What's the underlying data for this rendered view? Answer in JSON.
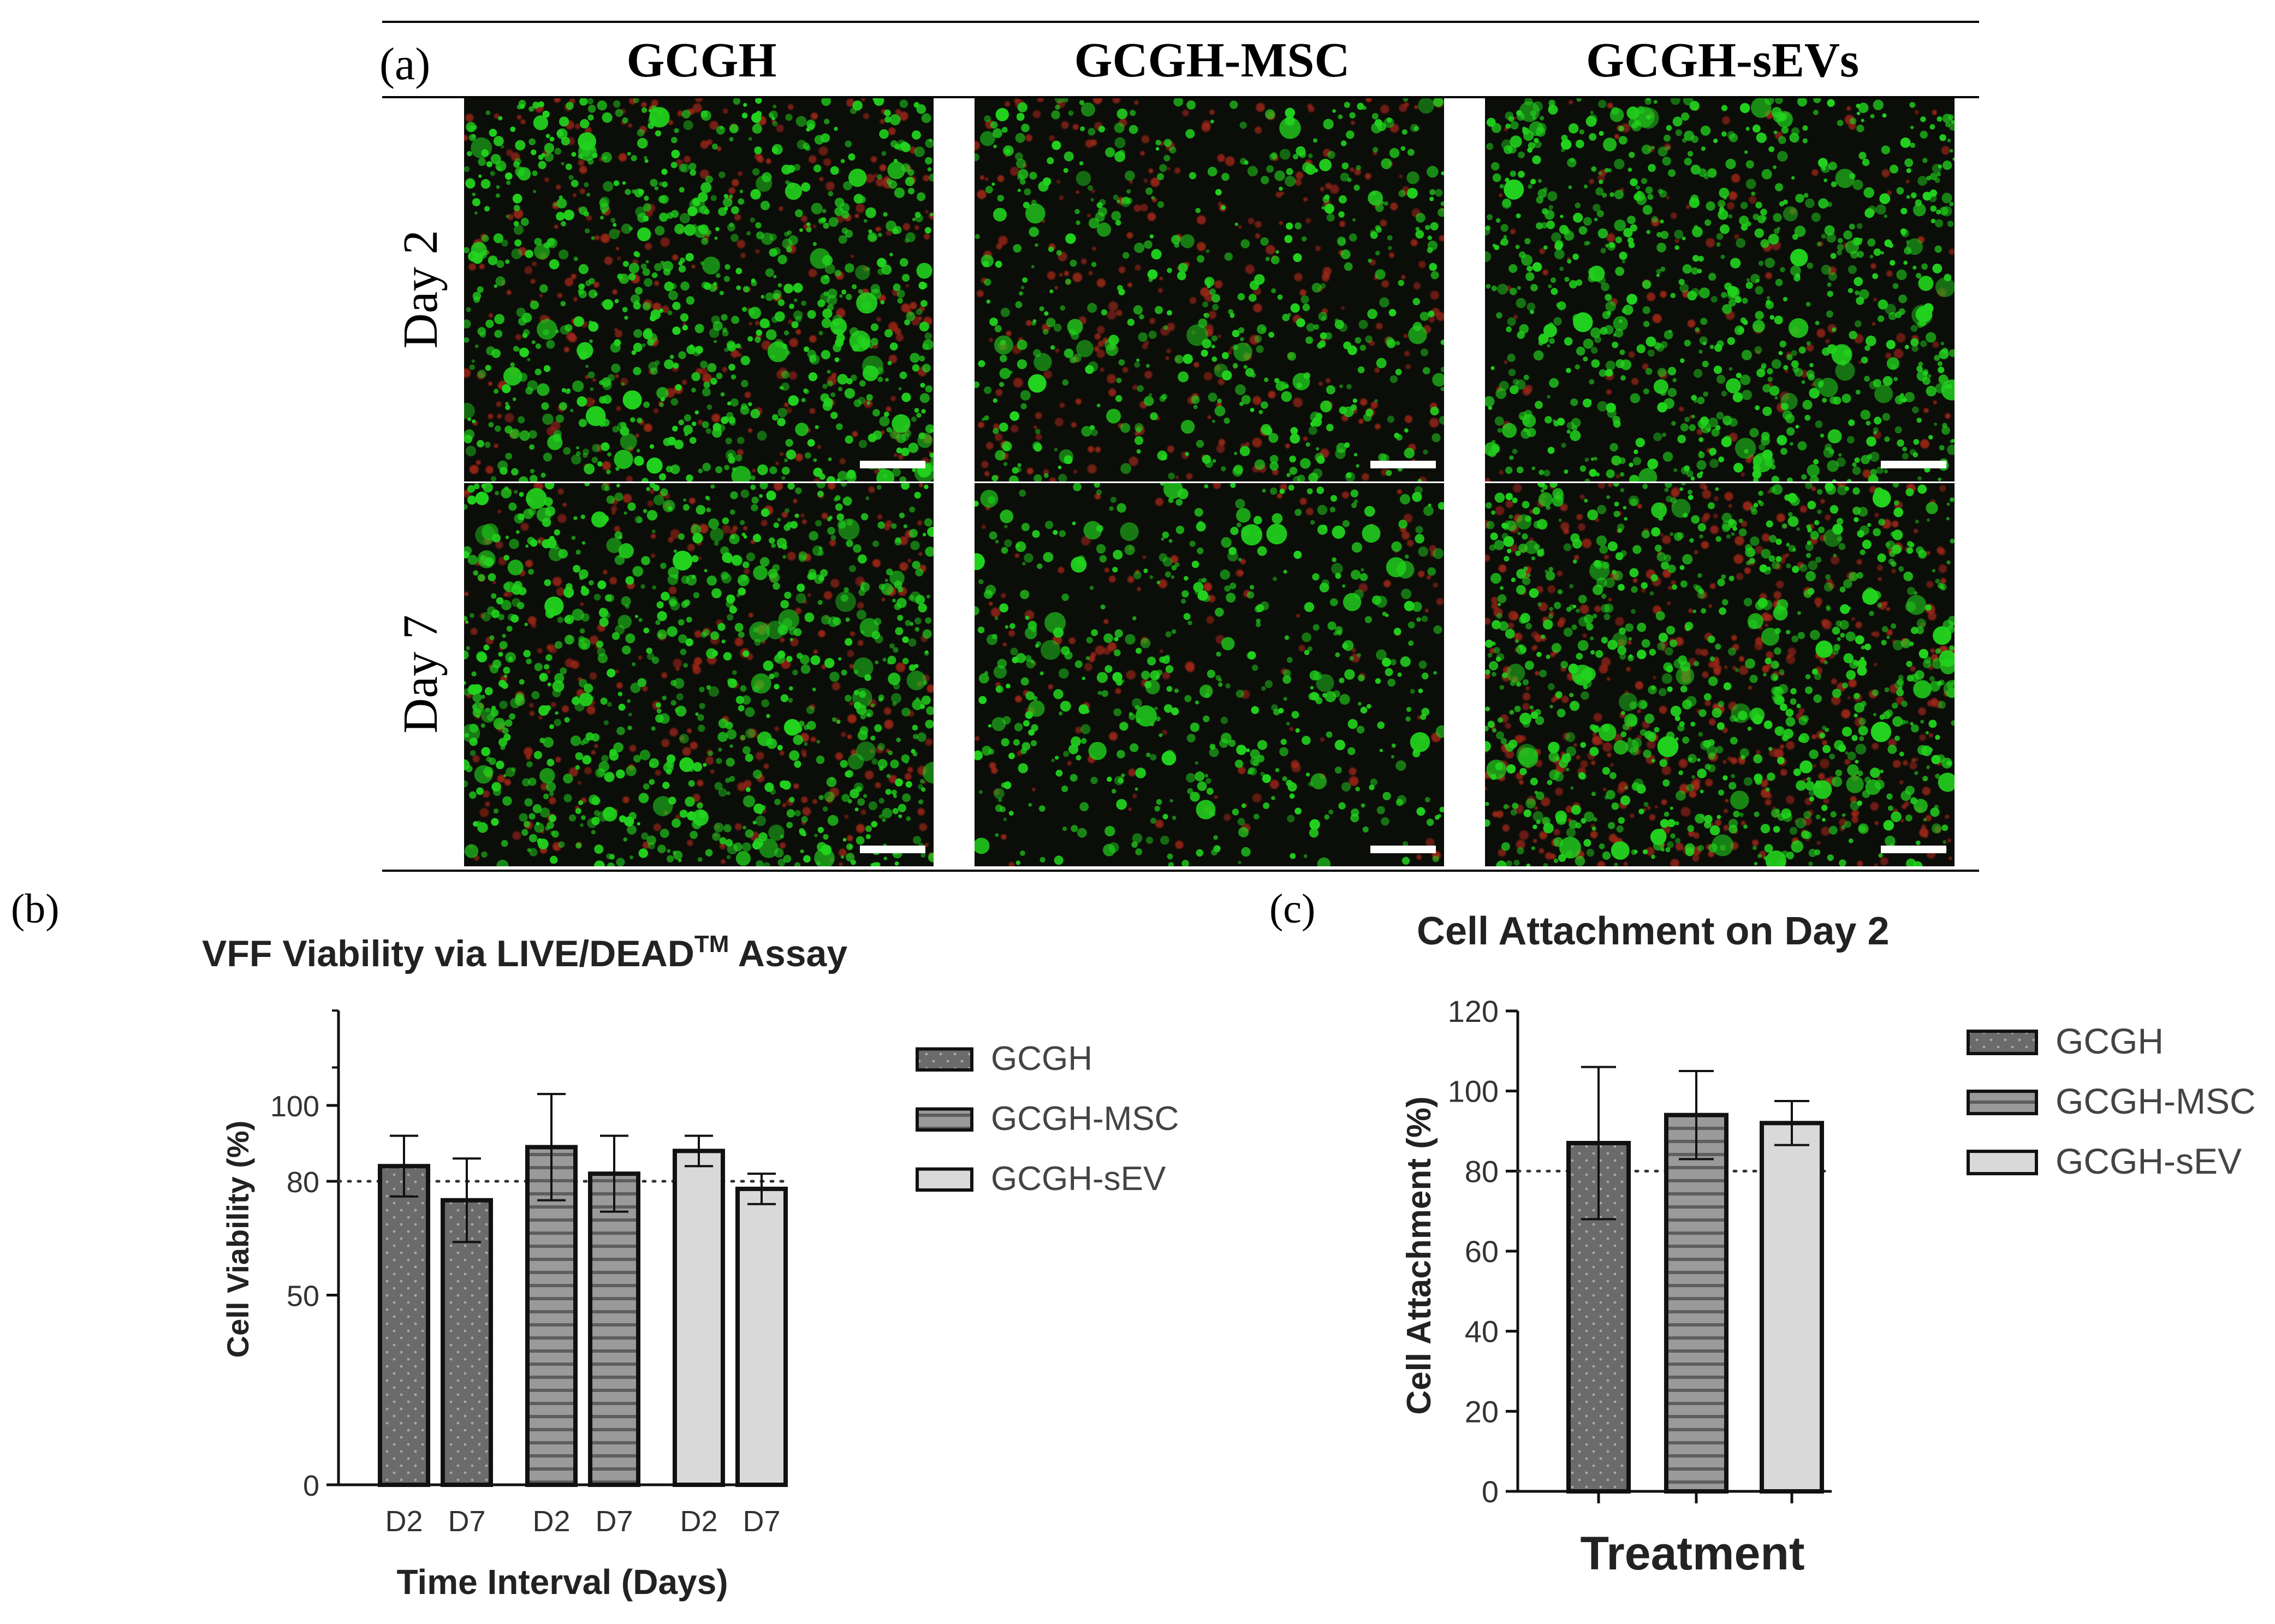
{
  "panel_a": {
    "label": "(a)",
    "columns": [
      "GCGH",
      "GCGH-MSC",
      "GCGH-sEVs"
    ],
    "rows": [
      "Day 2",
      "Day 7"
    ],
    "cell_images": [
      {
        "row": "Day 2",
        "column": "GCGH",
        "green_level": "high",
        "red_level": "medium"
      },
      {
        "row": "Day 2",
        "column": "GCGH-MSC",
        "green_level": "medium",
        "red_level": "medium"
      },
      {
        "row": "Day 2",
        "column": "GCGH-sEVs",
        "green_level": "high",
        "red_level": "low"
      },
      {
        "row": "Day 7",
        "column": "GCGH",
        "green_level": "high",
        "red_level": "medium"
      },
      {
        "row": "Day 7",
        "column": "GCGH-MSC",
        "green_level": "medium",
        "red_level": "low"
      },
      {
        "row": "Day 7",
        "column": "GCGH-sEVs",
        "green_level": "high",
        "red_level": "high"
      }
    ],
    "colors": {
      "live": "#22d31e",
      "dead": "#a3281a",
      "background": "#0b0d08",
      "scale_bar": "#ffffff"
    }
  },
  "chart_data": [
    {
      "panel_label": "(b)",
      "type": "bar",
      "title": "VFF Viability via LIVE/DEAD",
      "title_superscript": "TM",
      "title_suffix": " Assay",
      "xlabel": "Time Interval (Days)",
      "ylabel": "Cell Viability (%)",
      "yticks": [
        0,
        50,
        80,
        100
      ],
      "ylim": [
        0,
        125
      ],
      "reference_line": 80,
      "groups": [
        {
          "name": "GCGH",
          "categories": [
            "D2",
            "D7"
          ],
          "values": [
            84,
            75
          ],
          "errors": [
            8,
            11
          ],
          "fill": "#6b6b6b",
          "pattern": "dots"
        },
        {
          "name": "GCGH-MSC",
          "categories": [
            "D2",
            "D7"
          ],
          "values": [
            89,
            82
          ],
          "errors": [
            14,
            10
          ],
          "fill": "#9a9a9a",
          "pattern": "stripes"
        },
        {
          "name": "GCGH-sEV",
          "categories": [
            "D2",
            "D7"
          ],
          "values": [
            88,
            78
          ],
          "errors": [
            4,
            4
          ],
          "fill": "#d9d9d9",
          "pattern": "none"
        }
      ],
      "legend": [
        "GCGH",
        "GCGH-MSC",
        "GCGH-sEV"
      ],
      "legend_position": "right",
      "grid": false
    },
    {
      "panel_label": "(c)",
      "type": "bar",
      "title": "Cell Attachment on Day 2",
      "xlabel": "Treatment",
      "ylabel": "Cell Attachment (%)",
      "yticks": [
        0,
        20,
        40,
        60,
        80,
        100,
        120
      ],
      "ylim": [
        0,
        120
      ],
      "reference_line": 80,
      "categories": [
        "GCGH",
        "GCGH-MSC",
        "GCGH-sEV"
      ],
      "values": [
        87,
        94,
        92
      ],
      "errors": [
        19,
        11,
        5.5
      ],
      "fills": [
        "#6b6b6b",
        "#9a9a9a",
        "#d9d9d9"
      ],
      "patterns": [
        "dots",
        "stripes",
        "none"
      ],
      "legend": [
        "GCGH",
        "GCGH-MSC",
        "GCGH-sEV"
      ],
      "legend_position": "right",
      "grid": false
    }
  ]
}
